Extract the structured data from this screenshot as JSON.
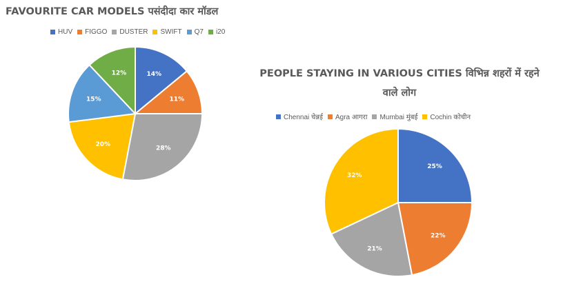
{
  "chart_data": [
    {
      "type": "pie",
      "title": "FAVOURITE CAR MODELS पसंदीदा कार मॉडल",
      "legend_position": "top",
      "labels": [
        "HUV",
        "FIGGO",
        "DUSTER",
        "SWIFT",
        "Q7",
        "i20"
      ],
      "values": [
        14,
        11,
        28,
        20,
        15,
        12
      ],
      "value_labels": [
        "14%",
        "11%",
        "28%",
        "20%",
        "15%",
        "12%"
      ],
      "colors": [
        "#4472C4",
        "#ED7D31",
        "#A5A5A5",
        "#FFC000",
        "#5B9BD5",
        "#70AD47"
      ]
    },
    {
      "type": "pie",
      "title": "PEOPLE STAYING IN VARIOUS CITIES विभिन्न शहरों में रहने वाले लोग",
      "legend_position": "top",
      "labels": [
        "Chennai चेन्नई",
        "Agra आगरा",
        "Mumbai मुंबई",
        "Cochin कोचीन"
      ],
      "values": [
        25,
        22,
        21,
        32
      ],
      "value_labels": [
        "25%",
        "22%",
        "21%",
        "32%"
      ],
      "colors": [
        "#4472C4",
        "#ED7D31",
        "#A5A5A5",
        "#FFC000"
      ]
    }
  ]
}
